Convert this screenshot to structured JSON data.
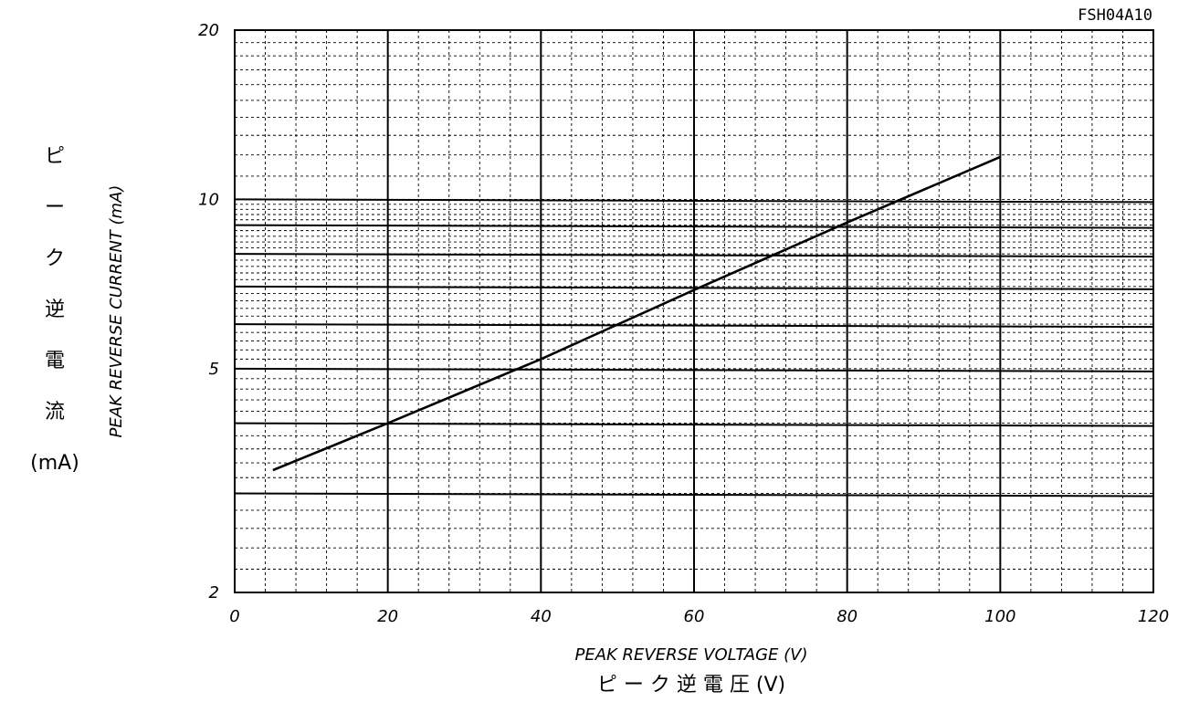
{
  "chart_data": {
    "type": "line",
    "doc_code": "FSH04A10",
    "xlabel_en": "PEAK REVERSE VOLTAGE (V)",
    "xlabel_jp": "ピ ー ク 逆 電 圧 (V)",
    "ylabel_en": "PEAK REVERSE CURRENT (mA)",
    "ylabel_jp": "ピーク逆電流(mA)",
    "y_scale": "log",
    "grid": true,
    "xlim": [
      0,
      120
    ],
    "ylim": [
      2,
      20
    ],
    "x_ticks": [
      "0",
      "20",
      "40",
      "60",
      "80",
      "100",
      "120"
    ],
    "y_ticks": [
      "2",
      "5",
      "10",
      "20"
    ],
    "series": [
      {
        "x": [
          5,
          20,
          40,
          60,
          80,
          100
        ],
        "y": [
          3.3,
          4.0,
          5.2,
          6.9,
          9.1,
          11.9
        ]
      }
    ],
    "reference_lines_y": [
      3,
      4,
      5,
      6,
      7,
      8,
      9,
      10
    ]
  }
}
